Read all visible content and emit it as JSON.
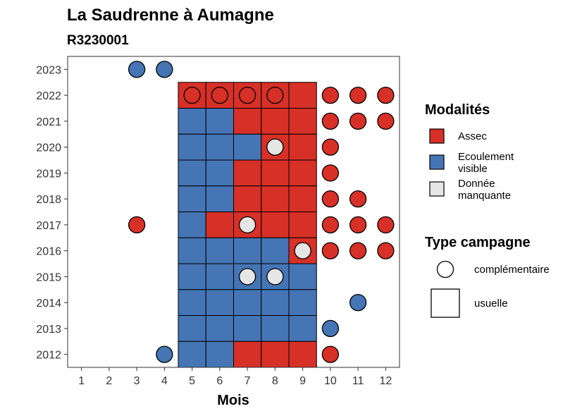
{
  "title": "La Saudrenne à Aumagne",
  "subtitle": "R3230001",
  "chart_data": {
    "type": "heatmap",
    "xlabel": "Mois",
    "ylabel": "",
    "x_ticks": [
      1,
      2,
      3,
      4,
      5,
      6,
      7,
      8,
      9,
      10,
      11,
      12
    ],
    "y_ticks": [
      2012,
      2013,
      2014,
      2015,
      2016,
      2017,
      2018,
      2019,
      2020,
      2021,
      2022,
      2023
    ],
    "xlim": [
      0.5,
      12.5
    ],
    "ylim": [
      2011.5,
      2023.5
    ],
    "grid": false,
    "modalites": [
      {
        "key": "assec",
        "label_lines": [
          "Assec"
        ],
        "color": "#d73027"
      },
      {
        "key": "ecoulement",
        "label_lines": [
          "Ecoulement",
          "visible"
        ],
        "color": "#4575b4"
      },
      {
        "key": "manquante",
        "label_lines": [
          "Donnée",
          "manquante"
        ],
        "color": "#e6e6e6"
      }
    ],
    "type_campagne": [
      {
        "key": "complementaire",
        "label": "complémentaire",
        "shape": "circle"
      },
      {
        "key": "usuelle",
        "label": "usuelle",
        "shape": "square"
      }
    ],
    "legend_position": "right",
    "legend_titles": {
      "modalites": "Modalités",
      "type_campagne": "Type campagne"
    },
    "observations": [
      {
        "year": 2023,
        "month": 3,
        "value": "ecoulement",
        "campaign": "complementaire"
      },
      {
        "year": 2023,
        "month": 4,
        "value": "ecoulement",
        "campaign": "complementaire"
      },
      {
        "year": 2022,
        "month": 5,
        "value": "assec",
        "campaign": "usuelle"
      },
      {
        "year": 2022,
        "month": 6,
        "value": "assec",
        "campaign": "usuelle"
      },
      {
        "year": 2022,
        "month": 7,
        "value": "assec",
        "campaign": "usuelle"
      },
      {
        "year": 2022,
        "month": 8,
        "value": "assec",
        "campaign": "usuelle"
      },
      {
        "year": 2022,
        "month": 9,
        "value": "assec",
        "campaign": "usuelle"
      },
      {
        "year": 2022,
        "month": 5,
        "value": "assec",
        "campaign": "complementaire"
      },
      {
        "year": 2022,
        "month": 6,
        "value": "assec",
        "campaign": "complementaire"
      },
      {
        "year": 2022,
        "month": 7,
        "value": "assec",
        "campaign": "complementaire"
      },
      {
        "year": 2022,
        "month": 8,
        "value": "assec",
        "campaign": "complementaire"
      },
      {
        "year": 2022,
        "month": 10,
        "value": "assec",
        "campaign": "complementaire"
      },
      {
        "year": 2022,
        "month": 11,
        "value": "assec",
        "campaign": "complementaire"
      },
      {
        "year": 2022,
        "month": 12,
        "value": "assec",
        "campaign": "complementaire"
      },
      {
        "year": 2021,
        "month": 5,
        "value": "ecoulement",
        "campaign": "usuelle"
      },
      {
        "year": 2021,
        "month": 6,
        "value": "ecoulement",
        "campaign": "usuelle"
      },
      {
        "year": 2021,
        "month": 7,
        "value": "assec",
        "campaign": "usuelle"
      },
      {
        "year": 2021,
        "month": 8,
        "value": "assec",
        "campaign": "usuelle"
      },
      {
        "year": 2021,
        "month": 9,
        "value": "assec",
        "campaign": "usuelle"
      },
      {
        "year": 2021,
        "month": 10,
        "value": "assec",
        "campaign": "complementaire"
      },
      {
        "year": 2021,
        "month": 11,
        "value": "assec",
        "campaign": "complementaire"
      },
      {
        "year": 2021,
        "month": 12,
        "value": "assec",
        "campaign": "complementaire"
      },
      {
        "year": 2020,
        "month": 5,
        "value": "ecoulement",
        "campaign": "usuelle"
      },
      {
        "year": 2020,
        "month": 6,
        "value": "ecoulement",
        "campaign": "usuelle"
      },
      {
        "year": 2020,
        "month": 7,
        "value": "ecoulement",
        "campaign": "usuelle"
      },
      {
        "year": 2020,
        "month": 8,
        "value": "assec",
        "campaign": "usuelle"
      },
      {
        "year": 2020,
        "month": 9,
        "value": "assec",
        "campaign": "usuelle"
      },
      {
        "year": 2020,
        "month": 8,
        "value": "manquante",
        "campaign": "complementaire"
      },
      {
        "year": 2020,
        "month": 10,
        "value": "assec",
        "campaign": "complementaire"
      },
      {
        "year": 2019,
        "month": 5,
        "value": "ecoulement",
        "campaign": "usuelle"
      },
      {
        "year": 2019,
        "month": 6,
        "value": "ecoulement",
        "campaign": "usuelle"
      },
      {
        "year": 2019,
        "month": 7,
        "value": "assec",
        "campaign": "usuelle"
      },
      {
        "year": 2019,
        "month": 8,
        "value": "assec",
        "campaign": "usuelle"
      },
      {
        "year": 2019,
        "month": 9,
        "value": "assec",
        "campaign": "usuelle"
      },
      {
        "year": 2019,
        "month": 10,
        "value": "assec",
        "campaign": "complementaire"
      },
      {
        "year": 2018,
        "month": 5,
        "value": "ecoulement",
        "campaign": "usuelle"
      },
      {
        "year": 2018,
        "month": 6,
        "value": "ecoulement",
        "campaign": "usuelle"
      },
      {
        "year": 2018,
        "month": 7,
        "value": "assec",
        "campaign": "usuelle"
      },
      {
        "year": 2018,
        "month": 8,
        "value": "assec",
        "campaign": "usuelle"
      },
      {
        "year": 2018,
        "month": 9,
        "value": "assec",
        "campaign": "usuelle"
      },
      {
        "year": 2018,
        "month": 10,
        "value": "assec",
        "campaign": "complementaire"
      },
      {
        "year": 2018,
        "month": 11,
        "value": "assec",
        "campaign": "complementaire"
      },
      {
        "year": 2017,
        "month": 5,
        "value": "ecoulement",
        "campaign": "usuelle"
      },
      {
        "year": 2017,
        "month": 6,
        "value": "assec",
        "campaign": "usuelle"
      },
      {
        "year": 2017,
        "month": 7,
        "value": "assec",
        "campaign": "usuelle"
      },
      {
        "year": 2017,
        "month": 8,
        "value": "assec",
        "campaign": "usuelle"
      },
      {
        "year": 2017,
        "month": 9,
        "value": "assec",
        "campaign": "usuelle"
      },
      {
        "year": 2017,
        "month": 3,
        "value": "assec",
        "campaign": "complementaire"
      },
      {
        "year": 2017,
        "month": 7,
        "value": "manquante",
        "campaign": "complementaire"
      },
      {
        "year": 2017,
        "month": 10,
        "value": "assec",
        "campaign": "complementaire"
      },
      {
        "year": 2017,
        "month": 11,
        "value": "assec",
        "campaign": "complementaire"
      },
      {
        "year": 2017,
        "month": 12,
        "value": "assec",
        "campaign": "complementaire"
      },
      {
        "year": 2016,
        "month": 5,
        "value": "ecoulement",
        "campaign": "usuelle"
      },
      {
        "year": 2016,
        "month": 6,
        "value": "ecoulement",
        "campaign": "usuelle"
      },
      {
        "year": 2016,
        "month": 7,
        "value": "ecoulement",
        "campaign": "usuelle"
      },
      {
        "year": 2016,
        "month": 8,
        "value": "ecoulement",
        "campaign": "usuelle"
      },
      {
        "year": 2016,
        "month": 9,
        "value": "assec",
        "campaign": "usuelle"
      },
      {
        "year": 2016,
        "month": 9,
        "value": "manquante",
        "campaign": "complementaire"
      },
      {
        "year": 2016,
        "month": 10,
        "value": "assec",
        "campaign": "complementaire"
      },
      {
        "year": 2016,
        "month": 11,
        "value": "assec",
        "campaign": "complementaire"
      },
      {
        "year": 2016,
        "month": 12,
        "value": "assec",
        "campaign": "complementaire"
      },
      {
        "year": 2015,
        "month": 5,
        "value": "ecoulement",
        "campaign": "usuelle"
      },
      {
        "year": 2015,
        "month": 6,
        "value": "ecoulement",
        "campaign": "usuelle"
      },
      {
        "year": 2015,
        "month": 7,
        "value": "ecoulement",
        "campaign": "usuelle"
      },
      {
        "year": 2015,
        "month": 8,
        "value": "ecoulement",
        "campaign": "usuelle"
      },
      {
        "year": 2015,
        "month": 9,
        "value": "ecoulement",
        "campaign": "usuelle"
      },
      {
        "year": 2015,
        "month": 7,
        "value": "manquante",
        "campaign": "complementaire"
      },
      {
        "year": 2015,
        "month": 8,
        "value": "manquante",
        "campaign": "complementaire"
      },
      {
        "year": 2014,
        "month": 5,
        "value": "ecoulement",
        "campaign": "usuelle"
      },
      {
        "year": 2014,
        "month": 6,
        "value": "ecoulement",
        "campaign": "usuelle"
      },
      {
        "year": 2014,
        "month": 7,
        "value": "ecoulement",
        "campaign": "usuelle"
      },
      {
        "year": 2014,
        "month": 8,
        "value": "ecoulement",
        "campaign": "usuelle"
      },
      {
        "year": 2014,
        "month": 9,
        "value": "ecoulement",
        "campaign": "usuelle"
      },
      {
        "year": 2014,
        "month": 11,
        "value": "ecoulement",
        "campaign": "complementaire"
      },
      {
        "year": 2013,
        "month": 5,
        "value": "ecoulement",
        "campaign": "usuelle"
      },
      {
        "year": 2013,
        "month": 6,
        "value": "ecoulement",
        "campaign": "usuelle"
      },
      {
        "year": 2013,
        "month": 7,
        "value": "ecoulement",
        "campaign": "usuelle"
      },
      {
        "year": 2013,
        "month": 8,
        "value": "ecoulement",
        "campaign": "usuelle"
      },
      {
        "year": 2013,
        "month": 9,
        "value": "ecoulement",
        "campaign": "usuelle"
      },
      {
        "year": 2013,
        "month": 10,
        "value": "ecoulement",
        "campaign": "complementaire"
      },
      {
        "year": 2012,
        "month": 5,
        "value": "ecoulement",
        "campaign": "usuelle"
      },
      {
        "year": 2012,
        "month": 6,
        "value": "ecoulement",
        "campaign": "usuelle"
      },
      {
        "year": 2012,
        "month": 7,
        "value": "assec",
        "campaign": "usuelle"
      },
      {
        "year": 2012,
        "month": 8,
        "value": "assec",
        "campaign": "usuelle"
      },
      {
        "year": 2012,
        "month": 9,
        "value": "assec",
        "campaign": "usuelle"
      },
      {
        "year": 2012,
        "month": 4,
        "value": "ecoulement",
        "campaign": "complementaire"
      },
      {
        "year": 2012,
        "month": 10,
        "value": "assec",
        "campaign": "complementaire"
      }
    ]
  }
}
